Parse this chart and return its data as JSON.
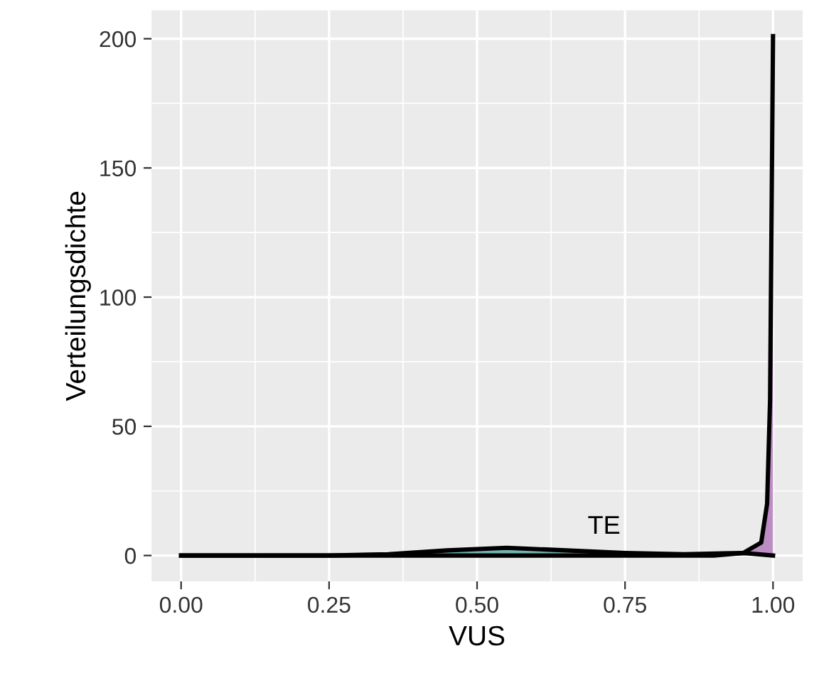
{
  "chart_data": {
    "type": "area",
    "xlabel": "VUS",
    "ylabel": "Verteilungsdichte",
    "xlim": [
      -0.05,
      1.05
    ],
    "ylim": [
      -10,
      211
    ],
    "xticks": [
      {
        "value": 0,
        "label": "0.00"
      },
      {
        "value": 0.25,
        "label": "0.25"
      },
      {
        "value": 0.5,
        "label": "0.50"
      },
      {
        "value": 0.75,
        "label": "0.75"
      },
      {
        "value": 1,
        "label": "1.00"
      }
    ],
    "yticks": [
      0,
      50,
      100,
      150,
      200
    ],
    "grid": true,
    "series": [
      {
        "color": "#21908c",
        "x": [
          0,
          0.25,
          0.35,
          0.45,
          0.55,
          0.65,
          0.75,
          0.85,
          0.95,
          1.0
        ],
        "values": [
          0,
          0,
          0.5,
          2,
          3,
          2,
          1,
          0.5,
          1,
          0
        ]
      },
      {
        "color": "#9b4fa8",
        "x": [
          0,
          0.9,
          0.95,
          0.98,
          0.99,
          0.995,
          1.0
        ],
        "values": [
          0,
          0,
          1,
          5,
          20,
          60,
          201
        ]
      }
    ],
    "annotations": [
      "TE"
    ]
  }
}
